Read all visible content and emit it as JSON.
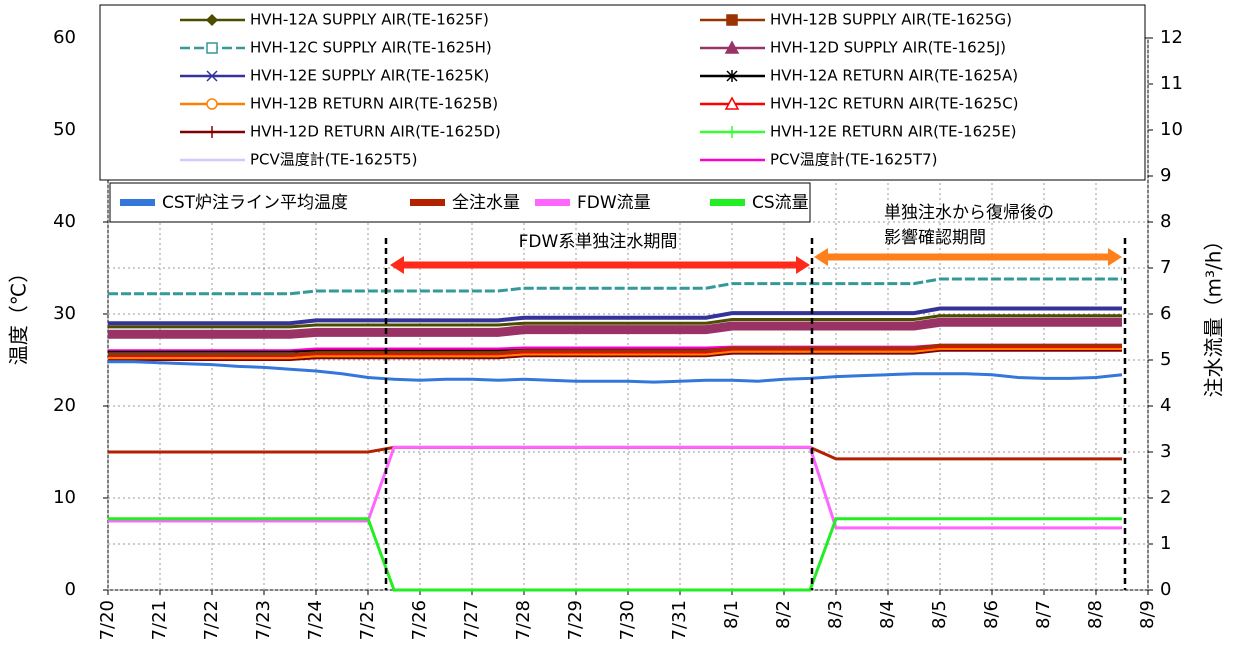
{
  "chart_data": {
    "type": "line",
    "ylabel": "温度（℃）",
    "y2label": "注水流量（m³/h）",
    "ylim": [
      0,
      60
    ],
    "yticks": [
      0,
      10,
      20,
      30,
      40,
      50,
      60
    ],
    "y2lim": [
      0,
      12
    ],
    "y2ticks": [
      0,
      1,
      2,
      3,
      4,
      5,
      6,
      7,
      8,
      9,
      10,
      11,
      12
    ],
    "grid": true,
    "annotations": [
      "FDW系単独注水期間",
      "単独注水から復帰後の",
      "影響確認期間"
    ],
    "categories": [
      "7/20",
      null,
      "7/21",
      null,
      "7/22",
      null,
      "7/23",
      null,
      "7/24",
      null,
      "7/25",
      null,
      "7/26",
      null,
      "7/27",
      null,
      "7/28",
      null,
      "7/29",
      null,
      "7/30",
      null,
      "7/31",
      null,
      "8/1",
      null,
      "8/2",
      null,
      "8/3",
      null,
      "8/4",
      null,
      "8/5",
      null,
      "8/6",
      null,
      "8/7",
      null,
      "8/8",
      null,
      "8/9"
    ],
    "series": [
      {
        "name": "HVH-12A SUPPLY AIR(TE-1625F)",
        "color": "#4d4d00",
        "marker": "diamond",
        "values": [
          28.6,
          28.6,
          28.6,
          28.6,
          28.6,
          28.6,
          28.6,
          28.6,
          28.8,
          28.8,
          28.8,
          28.8,
          28.8,
          28.8,
          28.8,
          28.8,
          29.0,
          29.0,
          29.0,
          29.0,
          29.0,
          29.0,
          29.0,
          29.0,
          29.4,
          29.4,
          29.4,
          29.4,
          29.4,
          29.4,
          29.4,
          29.4,
          29.8,
          29.8,
          29.8,
          29.8,
          29.8,
          29.8,
          29.8,
          29.8,
          null
        ]
      },
      {
        "name": "HVH-12B SUPPLY AIR(TE-1625G)",
        "color": "#993300",
        "marker": "square",
        "values": [
          25.6,
          25.6,
          25.6,
          25.6,
          25.6,
          25.6,
          25.6,
          25.6,
          25.8,
          25.8,
          25.8,
          25.8,
          25.8,
          25.8,
          25.8,
          25.8,
          26.0,
          26.0,
          26.0,
          26.0,
          26.0,
          26.0,
          26.0,
          26.0,
          26.3,
          26.3,
          26.3,
          26.3,
          26.3,
          26.3,
          26.3,
          26.3,
          26.6,
          26.6,
          26.6,
          26.6,
          26.6,
          26.6,
          26.6,
          26.6,
          null
        ]
      },
      {
        "name": "HVH-12C SUPPLY AIR(TE-1625H)",
        "color": "#339999",
        "marker": "open-square",
        "values": [
          32.2,
          32.2,
          32.2,
          32.2,
          32.2,
          32.2,
          32.2,
          32.2,
          32.5,
          32.5,
          32.5,
          32.5,
          32.5,
          32.5,
          32.5,
          32.5,
          32.8,
          32.8,
          32.8,
          32.8,
          32.8,
          32.8,
          32.8,
          32.8,
          33.3,
          33.3,
          33.3,
          33.3,
          33.3,
          33.3,
          33.3,
          33.3,
          33.8,
          33.8,
          33.8,
          33.8,
          33.8,
          33.8,
          33.8,
          33.8,
          null
        ]
      },
      {
        "name": "HVH-12D SUPPLY AIR(TE-1625J)",
        "color": "#993366",
        "marker": "triangle",
        "values": [
          27.8,
          27.8,
          27.8,
          27.8,
          27.8,
          27.8,
          27.8,
          27.8,
          28.0,
          28.0,
          28.0,
          28.0,
          28.0,
          28.0,
          28.0,
          28.0,
          28.3,
          28.3,
          28.3,
          28.3,
          28.3,
          28.3,
          28.3,
          28.3,
          28.7,
          28.7,
          28.7,
          28.7,
          28.7,
          28.7,
          28.7,
          28.7,
          29.1,
          29.1,
          29.1,
          29.1,
          29.1,
          29.1,
          29.1,
          29.1,
          null
        ]
      },
      {
        "name": "HVH-12E SUPPLY AIR(TE-1625K)",
        "color": "#333399",
        "marker": "x",
        "values": [
          29.0,
          29.0,
          29.0,
          29.0,
          29.0,
          29.0,
          29.0,
          29.0,
          29.3,
          29.3,
          29.3,
          29.3,
          29.3,
          29.3,
          29.3,
          29.3,
          29.6,
          29.6,
          29.6,
          29.6,
          29.6,
          29.6,
          29.6,
          29.6,
          30.1,
          30.1,
          30.1,
          30.1,
          30.1,
          30.1,
          30.1,
          30.1,
          30.6,
          30.6,
          30.6,
          30.6,
          30.6,
          30.6,
          30.6,
          30.6,
          null
        ]
      },
      {
        "name": "HVH-12A RETURN AIR(TE-1625A)",
        "color": "#000000",
        "marker": "star",
        "values": [
          25.9,
          25.9,
          25.9,
          25.9,
          25.9,
          25.9,
          25.9,
          25.9,
          26.0,
          26.0,
          26.0,
          26.0,
          26.0,
          26.0,
          26.0,
          26.0,
          26.1,
          26.1,
          26.1,
          26.1,
          26.1,
          26.1,
          26.1,
          26.1,
          26.3,
          26.3,
          26.3,
          26.3,
          26.3,
          26.3,
          26.3,
          26.3,
          26.6,
          26.6,
          26.6,
          26.6,
          26.6,
          26.6,
          26.6,
          26.6,
          null
        ]
      },
      {
        "name": "HVH-12B RETURN AIR(TE-1625B)",
        "color": "#ff8000",
        "marker": "circle",
        "values": [
          25.2,
          25.2,
          25.2,
          25.2,
          25.2,
          25.2,
          25.2,
          25.2,
          25.4,
          25.4,
          25.4,
          25.4,
          25.4,
          25.4,
          25.4,
          25.4,
          25.6,
          25.6,
          25.6,
          25.6,
          25.6,
          25.6,
          25.6,
          25.6,
          25.9,
          25.9,
          25.9,
          25.9,
          25.9,
          25.9,
          25.9,
          25.9,
          26.2,
          26.2,
          26.2,
          26.2,
          26.2,
          26.2,
          26.2,
          26.2,
          null
        ]
      },
      {
        "name": "HVH-12C RETURN AIR(TE-1625C)",
        "color": "#ff0000",
        "marker": "open-triangle",
        "values": [
          25.4,
          25.4,
          25.4,
          25.4,
          25.4,
          25.4,
          25.4,
          25.4,
          25.6,
          25.6,
          25.6,
          25.6,
          25.6,
          25.6,
          25.6,
          25.6,
          25.8,
          25.8,
          25.8,
          25.8,
          25.8,
          25.8,
          25.8,
          25.8,
          26.1,
          26.1,
          26.1,
          26.1,
          26.1,
          26.1,
          26.1,
          26.1,
          26.4,
          26.4,
          26.4,
          26.4,
          26.4,
          26.4,
          26.4,
          26.4,
          null
        ]
      },
      {
        "name": "HVH-12D RETURN AIR(TE-1625D)",
        "color": "#800000",
        "marker": "plus",
        "values": [
          25.0,
          25.0,
          25.0,
          25.0,
          25.0,
          25.0,
          25.0,
          25.0,
          25.2,
          25.2,
          25.2,
          25.2,
          25.2,
          25.2,
          25.2,
          25.2,
          25.4,
          25.4,
          25.4,
          25.4,
          25.4,
          25.4,
          25.4,
          25.4,
          25.7,
          25.7,
          25.7,
          25.7,
          25.7,
          25.7,
          25.7,
          25.7,
          26.0,
          26.0,
          26.0,
          26.0,
          26.0,
          26.0,
          26.0,
          26.0,
          null
        ]
      },
      {
        "name": "HVH-12E RETURN AIR(TE-1625E)",
        "color": "#33ff33",
        "marker": "plus",
        "values": [
          25.1,
          25.1,
          25.1,
          25.1,
          25.1,
          25.1,
          25.1,
          25.1,
          25.3,
          25.3,
          25.3,
          25.3,
          25.3,
          25.3,
          25.3,
          25.3,
          25.5,
          25.5,
          25.5,
          25.5,
          25.5,
          25.5,
          25.5,
          25.5,
          25.8,
          25.8,
          25.8,
          25.8,
          25.8,
          25.8,
          25.8,
          25.8,
          26.2,
          26.2,
          26.2,
          26.2,
          26.2,
          26.2,
          26.2,
          26.2,
          null
        ]
      },
      {
        "name": "PCV温度計(TE-1625T5)",
        "color": "#ccccff",
        "marker": "dash",
        "values": [
          25.5,
          25.5,
          25.5,
          25.5,
          25.5,
          25.5,
          25.5,
          25.5,
          25.6,
          25.6,
          25.6,
          25.6,
          25.6,
          25.6,
          25.6,
          25.6,
          25.7,
          25.7,
          25.7,
          25.7,
          25.7,
          25.7,
          25.7,
          25.7,
          25.9,
          25.9,
          25.9,
          25.9,
          25.9,
          25.9,
          25.9,
          25.9,
          26.1,
          26.1,
          26.1,
          26.1,
          26.1,
          26.1,
          26.1,
          26.1,
          null
        ]
      },
      {
        "name": "PCV温度計(TE-1625T7)",
        "color": "#ff00cc",
        "marker": "dash",
        "values": [
          26.0,
          26.0,
          26.0,
          26.0,
          26.0,
          26.0,
          26.0,
          26.0,
          26.2,
          26.2,
          26.2,
          26.2,
          26.2,
          26.2,
          26.2,
          26.2,
          26.3,
          26.3,
          26.3,
          26.3,
          26.3,
          26.3,
          26.3,
          26.3,
          26.4,
          26.4,
          26.4,
          26.4,
          26.4,
          26.4,
          26.4,
          26.4,
          26.6,
          26.6,
          26.6,
          26.6,
          26.6,
          26.6,
          26.6,
          26.6,
          null
        ]
      },
      {
        "name": "CST炉注ライン平均温度",
        "color": "#3377dd",
        "values": [
          24.8,
          24.8,
          24.7,
          24.6,
          24.5,
          24.3,
          24.2,
          24.0,
          23.8,
          23.5,
          23.1,
          22.9,
          22.8,
          22.9,
          22.9,
          22.8,
          22.9,
          22.8,
          22.7,
          22.7,
          22.7,
          22.6,
          22.7,
          22.8,
          22.8,
          22.7,
          22.9,
          23.0,
          23.2,
          23.3,
          23.4,
          23.5,
          23.5,
          23.5,
          23.4,
          23.1,
          23.0,
          23.0,
          23.1,
          23.4,
          null
        ]
      },
      {
        "name": "全注水量",
        "color": "#b22200",
        "axis": "y2",
        "values": [
          3.0,
          3.0,
          3.0,
          3.0,
          3.0,
          3.0,
          3.0,
          3.0,
          3.0,
          3.0,
          3.0,
          3.1,
          3.1,
          3.1,
          3.1,
          3.1,
          3.1,
          3.1,
          3.1,
          3.1,
          3.1,
          3.1,
          3.1,
          3.1,
          3.1,
          3.1,
          3.1,
          3.1,
          2.85,
          2.85,
          2.85,
          2.85,
          2.85,
          2.85,
          2.85,
          2.85,
          2.85,
          2.85,
          2.85,
          2.85,
          null
        ]
      },
      {
        "name": "FDW流量",
        "color": "#ff66ff",
        "axis": "y2",
        "values": [
          1.5,
          1.5,
          1.5,
          1.5,
          1.5,
          1.5,
          1.5,
          1.5,
          1.5,
          1.5,
          1.5,
          3.1,
          3.1,
          3.1,
          3.1,
          3.1,
          3.1,
          3.1,
          3.1,
          3.1,
          3.1,
          3.1,
          3.1,
          3.1,
          3.1,
          3.1,
          3.1,
          3.1,
          1.35,
          1.35,
          1.35,
          1.35,
          1.35,
          1.35,
          1.35,
          1.35,
          1.35,
          1.35,
          1.35,
          1.35,
          null
        ]
      },
      {
        "name": "CS流量",
        "color": "#22ee22",
        "axis": "y2",
        "values": [
          1.55,
          1.55,
          1.55,
          1.55,
          1.55,
          1.55,
          1.55,
          1.55,
          1.55,
          1.55,
          1.55,
          0,
          0,
          0,
          0,
          0,
          0,
          0,
          0,
          0,
          0,
          0,
          0,
          0,
          0,
          0,
          0,
          0,
          1.55,
          1.55,
          1.55,
          1.55,
          1.55,
          1.55,
          1.55,
          1.55,
          1.55,
          1.55,
          1.55,
          1.55,
          null
        ]
      }
    ]
  }
}
